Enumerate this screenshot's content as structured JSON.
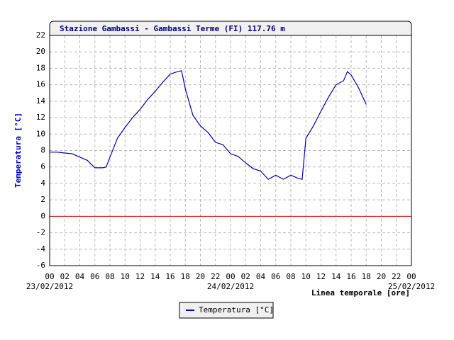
{
  "chart_data": {
    "type": "line",
    "title": "Stazione Gambassi - Gambassi Terme (FI) 117.76 m",
    "y_label": "Temperatura [°C]",
    "x_label": "Linea temporale [ore]",
    "x": [
      0,
      1,
      2,
      3,
      4,
      5,
      6,
      7,
      7.5,
      8,
      9,
      10,
      11,
      12,
      13,
      14,
      15,
      16,
      17,
      17.5,
      18,
      19,
      20,
      21,
      22,
      23,
      24,
      25,
      26,
      27,
      28,
      29,
      30,
      31,
      32,
      33,
      33.5,
      34,
      35,
      36,
      37,
      38,
      39,
      39.5,
      40,
      41,
      42
    ],
    "series": [
      {
        "name": "Temperatura [°C]",
        "color": "#0000cc",
        "values": [
          7.8,
          7.8,
          7.7,
          7.6,
          7.2,
          6.8,
          5.9,
          5.9,
          6.0,
          7.2,
          9.5,
          10.8,
          12.0,
          13.0,
          14.2,
          15.2,
          16.3,
          17.3,
          17.6,
          17.7,
          15.5,
          12.3,
          11.0,
          10.2,
          9.0,
          8.7,
          7.6,
          7.3,
          6.5,
          5.8,
          5.5,
          4.5,
          5.0,
          4.5,
          5.0,
          4.6,
          4.5,
          9.5,
          11.0,
          12.8,
          14.5,
          16.0,
          16.5,
          17.6,
          17.2,
          15.6,
          13.6
        ]
      }
    ],
    "xlim": [
      0,
      48
    ],
    "xticks": [
      {
        "value": 0,
        "label": "00"
      },
      {
        "value": 2,
        "label": "02"
      },
      {
        "value": 4,
        "label": "04"
      },
      {
        "value": 6,
        "label": "06"
      },
      {
        "value": 8,
        "label": "08"
      },
      {
        "value": 10,
        "label": "10"
      },
      {
        "value": 12,
        "label": "12"
      },
      {
        "value": 14,
        "label": "14"
      },
      {
        "value": 16,
        "label": "16"
      },
      {
        "value": 18,
        "label": "18"
      },
      {
        "value": 20,
        "label": "20"
      },
      {
        "value": 22,
        "label": "22"
      },
      {
        "value": 24,
        "label": "00"
      },
      {
        "value": 26,
        "label": "02"
      },
      {
        "value": 28,
        "label": "04"
      },
      {
        "value": 30,
        "label": "06"
      },
      {
        "value": 32,
        "label": "08"
      },
      {
        "value": 34,
        "label": "10"
      },
      {
        "value": 36,
        "label": "12"
      },
      {
        "value": 38,
        "label": "14"
      },
      {
        "value": 40,
        "label": "16"
      },
      {
        "value": 42,
        "label": "18"
      },
      {
        "value": 44,
        "label": "20"
      },
      {
        "value": 46,
        "label": "22"
      },
      {
        "value": 48,
        "label": "00"
      }
    ],
    "date_labels": [
      {
        "value": 0,
        "label": "23/02/2012"
      },
      {
        "value": 24,
        "label": "24/02/2012"
      },
      {
        "value": 48,
        "label": "25/02/2012"
      }
    ],
    "ylim": [
      -6,
      22
    ],
    "yticks": [
      -6,
      -4,
      -2,
      0,
      2,
      4,
      6,
      8,
      10,
      12,
      14,
      16,
      18,
      20,
      22
    ],
    "hline": {
      "value": 0,
      "color": "#cc0000"
    },
    "grid": true,
    "legend": "bottom"
  }
}
